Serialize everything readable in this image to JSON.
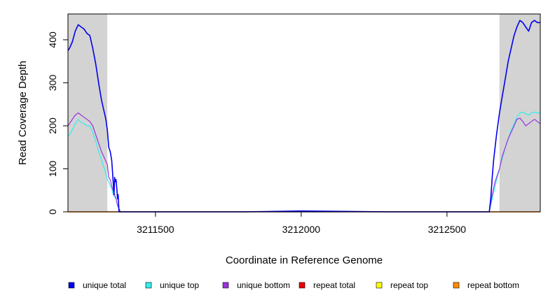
{
  "chart_data": {
    "type": "line",
    "title": "",
    "xlabel": "Coordinate in Reference Genome",
    "ylabel": "Read Coverage Depth",
    "xlim": [
      3211200,
      3212820
    ],
    "ylim": [
      0,
      460
    ],
    "x_ticks": [
      3211500,
      3212000,
      3212500
    ],
    "y_ticks": [
      0,
      100,
      200,
      300,
      400
    ],
    "grid": false,
    "legend_position": "bottom",
    "shaded_regions": [
      {
        "x_start": 3211200,
        "x_end": 3211335,
        "color": "#d3d3d3"
      },
      {
        "x_start": 3212680,
        "x_end": 3212820,
        "color": "#d3d3d3"
      }
    ],
    "series": [
      {
        "name": "unique total",
        "color": "#0000ee",
        "x": [
          3211200,
          3211205,
          3211215,
          3211225,
          3211235,
          3211245,
          3211255,
          3211265,
          3211275,
          3211285,
          3211295,
          3211305,
          3211315,
          3211325,
          3211330,
          3211335,
          3211340,
          3211345,
          3211350,
          3211353,
          3211356,
          3211358,
          3211360,
          3211362,
          3211365,
          3211368,
          3211370,
          3211372,
          3211375,
          3211380,
          3211500,
          3211800,
          3212000,
          3212300,
          3212500,
          3212600,
          3212645,
          3212650,
          3212655,
          3212660,
          3212665,
          3212670,
          3212680,
          3212690,
          3212700,
          3212710,
          3212720,
          3212730,
          3212740,
          3212750,
          3212760,
          3212770,
          3212780,
          3212790,
          3212800,
          3212810,
          3212820
        ],
        "y": [
          375,
          380,
          395,
          420,
          435,
          430,
          425,
          415,
          410,
          380,
          345,
          300,
          260,
          230,
          215,
          190,
          150,
          140,
          120,
          90,
          60,
          40,
          80,
          70,
          75,
          50,
          30,
          40,
          0,
          0,
          0,
          0,
          2,
          0,
          0,
          0,
          0,
          30,
          80,
          120,
          150,
          180,
          230,
          270,
          310,
          350,
          380,
          410,
          430,
          445,
          440,
          430,
          420,
          440,
          445,
          440,
          440
        ]
      },
      {
        "name": "unique top",
        "color": "#33eeee",
        "x": [
          3211200,
          3211205,
          3211215,
          3211225,
          3211235,
          3211245,
          3211255,
          3211265,
          3211275,
          3211285,
          3211295,
          3211305,
          3211315,
          3211325,
          3211335,
          3211340,
          3211345,
          3211350,
          3211355,
          3211360,
          3211365,
          3211370,
          3211380,
          3212500,
          3212645,
          3212655,
          3212665,
          3212680,
          3212690,
          3212700,
          3212710,
          3212720,
          3212730,
          3212740,
          3212750,
          3212760,
          3212770,
          3212780,
          3212790,
          3212800,
          3212810,
          3212820
        ],
        "y": [
          175,
          180,
          190,
          205,
          215,
          208,
          205,
          200,
          200,
          185,
          165,
          140,
          120,
          100,
          75,
          70,
          60,
          55,
          40,
          35,
          30,
          15,
          0,
          0,
          0,
          30,
          60,
          100,
          125,
          150,
          170,
          190,
          205,
          220,
          230,
          232,
          228,
          225,
          230,
          232,
          230,
          230
        ]
      },
      {
        "name": "unique bottom",
        "color": "#9933dd",
        "x": [
          3211200,
          3211205,
          3211215,
          3211225,
          3211235,
          3211245,
          3211255,
          3211265,
          3211275,
          3211285,
          3211295,
          3211305,
          3211315,
          3211325,
          3211335,
          3211340,
          3211345,
          3211350,
          3211355,
          3211360,
          3211365,
          3211370,
          3211380,
          3212500,
          3212645,
          3212655,
          3212665,
          3212680,
          3212690,
          3212700,
          3212710,
          3212720,
          3212730,
          3212740,
          3212750,
          3212760,
          3212770,
          3212780,
          3212790,
          3212800,
          3212810,
          3212820
        ],
        "y": [
          200,
          205,
          215,
          225,
          230,
          225,
          220,
          215,
          210,
          200,
          180,
          160,
          140,
          125,
          110,
          80,
          75,
          60,
          50,
          40,
          30,
          15,
          0,
          0,
          0,
          40,
          70,
          100,
          130,
          150,
          170,
          185,
          200,
          215,
          218,
          210,
          200,
          205,
          210,
          215,
          210,
          205
        ]
      },
      {
        "name": "repeat total",
        "color": "#ee0000",
        "x": [
          3211200,
          3212820
        ],
        "y": [
          0,
          0
        ]
      },
      {
        "name": "repeat top",
        "color": "#ffff00",
        "x": [
          3211200,
          3212820
        ],
        "y": [
          0,
          0
        ]
      },
      {
        "name": "repeat bottom",
        "color": "#ff8c00",
        "x": [
          3211200,
          3212820
        ],
        "y": [
          0,
          0
        ]
      }
    ]
  }
}
